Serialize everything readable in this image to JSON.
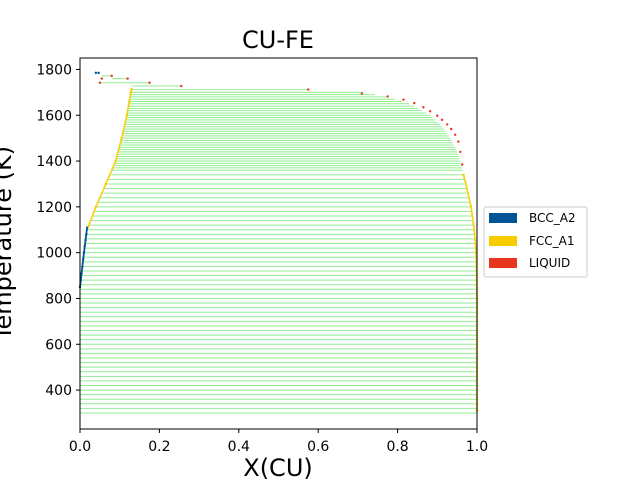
{
  "chart_data": {
    "type": "scatter",
    "title": "CU-FE",
    "xlabel": "X(CU)",
    "ylabel": "Temperature (K)",
    "xlim": [
      0.0,
      1.0
    ],
    "ylim": [
      230,
      1850
    ],
    "xticks": [
      0.0,
      0.2,
      0.4,
      0.6,
      0.8,
      1.0
    ],
    "xtick_labels": [
      "0.0",
      "0.2",
      "0.4",
      "0.6",
      "0.8",
      "1.0"
    ],
    "yticks": [
      400,
      600,
      800,
      1000,
      1200,
      1400,
      1600,
      1800
    ],
    "ytick_labels": [
      "400",
      "600",
      "800",
      "1000",
      "1200",
      "1400",
      "1600",
      "1800"
    ],
    "grid": false,
    "legend_position": "right",
    "legend": [
      {
        "name": "BCC_A2",
        "color": "#005596"
      },
      {
        "name": "FCC_A1",
        "color": "#f8cd00"
      },
      {
        "name": "LIQUID",
        "color": "#e8351e"
      }
    ],
    "tieline_color": "#90ee90",
    "tielines": {
      "description": "Horizontal tie-lines between phase boundaries",
      "fcc_fcc": {
        "t_start": 300,
        "t_end": 1340,
        "t_step": 20,
        "left_boundary": [
          [
            300,
            0.0
          ],
          [
            600,
            0.0
          ],
          [
            800,
            0.0
          ],
          [
            900,
            0.002
          ],
          [
            1000,
            0.006
          ],
          [
            1100,
            0.02
          ],
          [
            1200,
            0.04
          ],
          [
            1300,
            0.065
          ],
          [
            1340,
            0.075
          ]
        ],
        "right_boundary": [
          [
            300,
            1.0
          ],
          [
            600,
            1.0
          ],
          [
            800,
            1.0
          ],
          [
            1000,
            0.998
          ],
          [
            1100,
            0.993
          ],
          [
            1200,
            0.985
          ],
          [
            1300,
            0.972
          ],
          [
            1340,
            0.966
          ]
        ]
      },
      "fcc_liquid": {
        "t_start": 1360,
        "t_end": 1700,
        "t_step": 10,
        "left_boundary": [
          [
            1360,
            0.078
          ],
          [
            1400,
            0.09
          ],
          [
            1500,
            0.105
          ],
          [
            1600,
            0.118
          ],
          [
            1660,
            0.124
          ],
          [
            1700,
            0.127
          ]
        ],
        "right_boundary": [
          [
            1360,
            0.963
          ],
          [
            1400,
            0.958
          ],
          [
            1450,
            0.947
          ],
          [
            1500,
            0.933
          ],
          [
            1550,
            0.912
          ],
          [
            1600,
            0.882
          ],
          [
            1650,
            0.83
          ],
          [
            1680,
            0.775
          ],
          [
            1700,
            0.71
          ],
          [
            1710,
            0.575
          ]
        ]
      }
    },
    "series": [
      {
        "name": "BCC_A2",
        "color": "#005596",
        "x": [
          0.0,
          0.002,
          0.004,
          0.006,
          0.008,
          0.01,
          0.012,
          0.014,
          0.016,
          0.018,
          0.04,
          0.047
        ],
        "y": [
          850,
          880,
          910,
          940,
          970,
          1000,
          1030,
          1055,
          1080,
          1110,
          1785,
          1785
        ]
      },
      {
        "name": "FCC_A1",
        "color": "#f8cd00",
        "x": [
          0.02,
          0.04,
          0.065,
          0.09,
          0.105,
          0.118,
          0.124,
          0.127,
          0.13,
          0.966,
          0.985,
          0.998,
          1.0,
          1.0
        ],
        "y": [
          1110,
          1200,
          1300,
          1400,
          1500,
          1600,
          1660,
          1700,
          1715,
          1340,
          1200,
          1000,
          800,
          310
        ]
      },
      {
        "name": "LIQUID",
        "color": "#e8351e",
        "x": [
          0.05,
          0.055,
          0.08,
          0.12,
          0.175,
          0.255,
          0.575,
          0.71,
          0.775,
          0.815,
          0.842,
          0.865,
          0.882,
          0.9,
          0.912,
          0.925,
          0.935,
          0.945,
          0.953,
          0.958,
          0.963
        ],
        "y": [
          1742,
          1760,
          1772,
          1760,
          1742,
          1728,
          1712,
          1695,
          1682,
          1668,
          1653,
          1635,
          1617,
          1598,
          1580,
          1560,
          1540,
          1515,
          1485,
          1440,
          1385
        ]
      }
    ]
  }
}
